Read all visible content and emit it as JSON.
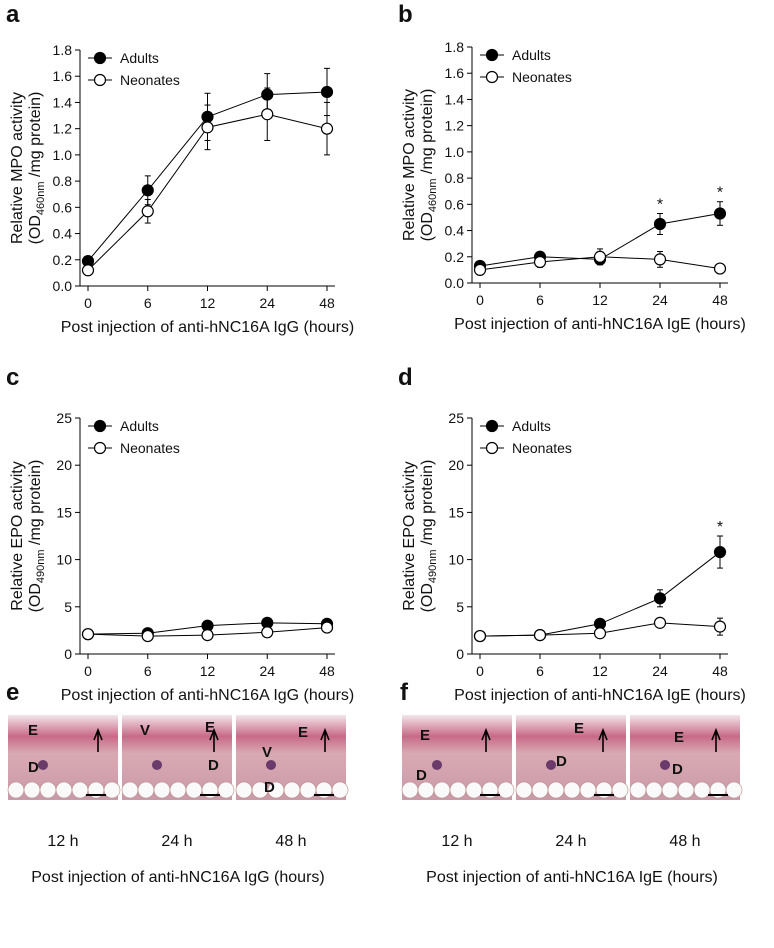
{
  "chart_data": [
    {
      "type": "line",
      "panel": "a",
      "ylabel": "Relative MPO activity",
      "ylabel_unit": {
        "prefix": "(OD",
        "sub": "460nm",
        "suffix": " /mg protein)"
      },
      "xlabel": "Post injection of anti-hNC16A IgG (hours)",
      "categories": [
        "0",
        "6",
        "12",
        "24",
        "48"
      ],
      "ylim": [
        0,
        1.8
      ],
      "yticks": [
        {
          "value": 0,
          "label": "0.0"
        },
        0.2,
        0.4,
        0.6,
        0.8,
        {
          "value": 1,
          "label": "1.0"
        },
        1.2,
        1.4,
        1.6,
        1.8
      ],
      "legend": "upper left",
      "series": [
        {
          "name": "Adults",
          "color": "#000000",
          "marker_fill": "#000000",
          "values": [
            0.19,
            0.73,
            1.29,
            1.46,
            1.48
          ],
          "errors": [
            0.03,
            0.11,
            0.18,
            0.16,
            0.18
          ]
        },
        {
          "name": "Neonates",
          "color": "#000000",
          "marker_fill": "#ffffff",
          "values": [
            0.12,
            0.57,
            1.21,
            1.31,
            1.2
          ],
          "errors": [
            0.03,
            0.09,
            0.17,
            0.2,
            0.2
          ]
        }
      ]
    },
    {
      "type": "line",
      "panel": "b",
      "ylabel": "Relative MPO activity",
      "ylabel_unit": {
        "prefix": "(OD",
        "sub": "460nm",
        "suffix": " /mg protein)"
      },
      "xlabel": "Post injection of anti-hNC16A IgE (hours)",
      "categories": [
        "0",
        "6",
        "12",
        "24",
        "48"
      ],
      "ylim": [
        0,
        1.8
      ],
      "yticks": [
        {
          "value": 0,
          "label": "0.0"
        },
        0.2,
        0.4,
        0.6,
        0.8,
        {
          "value": 1,
          "label": "1.0"
        },
        1.2,
        1.4,
        1.6,
        1.8
      ],
      "legend": "upper left",
      "series": [
        {
          "name": "Adults",
          "color": "#000000",
          "marker_fill": "#000000",
          "values": [
            0.13,
            0.2,
            0.18,
            0.45,
            0.53
          ],
          "errors": [
            0.03,
            0.03,
            0.04,
            0.08,
            0.09
          ],
          "markers": [
            null,
            null,
            null,
            "*",
            "*"
          ]
        },
        {
          "name": "Neonates",
          "color": "#000000",
          "marker_fill": "#ffffff",
          "values": [
            0.1,
            0.16,
            0.2,
            0.18,
            0.11
          ],
          "errors": [
            0.03,
            0.04,
            0.06,
            0.06,
            0.02
          ]
        }
      ]
    },
    {
      "type": "line",
      "panel": "c",
      "ylabel": "Relative EPO activity",
      "ylabel_unit": {
        "prefix": "(OD",
        "sub": "490nm",
        "suffix": " /mg protein)"
      },
      "xlabel": "Post injection of anti-hNC16A IgG (hours)",
      "categories": [
        "0",
        "6",
        "12",
        "24",
        "48"
      ],
      "ylim": [
        0,
        25
      ],
      "yticks": [
        0,
        5,
        10,
        15,
        20,
        25
      ],
      "legend": "upper left",
      "series": [
        {
          "name": "Adults",
          "color": "#000000",
          "marker_fill": "#000000",
          "values": [
            2.1,
            2.2,
            3.0,
            3.3,
            3.2
          ],
          "errors": [
            0.3,
            0.3,
            0.4,
            0.4,
            0.4
          ]
        },
        {
          "name": "Neonates",
          "color": "#000000",
          "marker_fill": "#ffffff",
          "values": [
            2.1,
            1.9,
            2.0,
            2.3,
            2.8
          ],
          "errors": [
            0.2,
            0.2,
            0.3,
            0.3,
            0.3
          ]
        }
      ]
    },
    {
      "type": "line",
      "panel": "d",
      "ylabel": "Relative EPO activity",
      "ylabel_unit": {
        "prefix": "(OD",
        "sub": "490nm",
        "suffix": " /mg protein)"
      },
      "xlabel": "Post injection of anti-hNC16A IgE (hours)",
      "categories": [
        "0",
        "6",
        "12",
        "24",
        "48"
      ],
      "ylim": [
        0,
        25
      ],
      "yticks": [
        0,
        5,
        10,
        15,
        20,
        25
      ],
      "legend": "upper left",
      "series": [
        {
          "name": "Adults",
          "color": "#000000",
          "marker_fill": "#000000",
          "values": [
            1.9,
            2.0,
            3.2,
            5.9,
            10.8
          ],
          "errors": [
            0.2,
            0.3,
            0.4,
            0.9,
            1.7
          ],
          "markers": [
            null,
            null,
            null,
            null,
            "*"
          ]
        },
        {
          "name": "Neonates",
          "color": "#000000",
          "marker_fill": "#ffffff",
          "values": [
            1.9,
            2.0,
            2.2,
            3.3,
            2.9
          ],
          "errors": [
            0.2,
            0.3,
            0.3,
            0.5,
            0.9
          ]
        }
      ]
    }
  ],
  "histology": [
    {
      "panel": "e",
      "xlabel": "Post injection of anti-hNC16A IgG (hours)",
      "images": [
        {
          "time": "12 h",
          "labels": [
            "E",
            "D"
          ]
        },
        {
          "time": "24 h",
          "labels": [
            "V",
            "E",
            "D"
          ]
        },
        {
          "time": "48 h",
          "labels": [
            "E",
            "V",
            "D"
          ]
        }
      ]
    },
    {
      "panel": "f",
      "xlabel": "Post injection of anti-hNC16A IgE (hours)",
      "images": [
        {
          "time": "12 h",
          "labels": [
            "E",
            "D"
          ]
        },
        {
          "time": "24 h",
          "labels": [
            "E",
            "D"
          ]
        },
        {
          "time": "48 h",
          "labels": [
            "E",
            "D"
          ]
        }
      ]
    }
  ]
}
